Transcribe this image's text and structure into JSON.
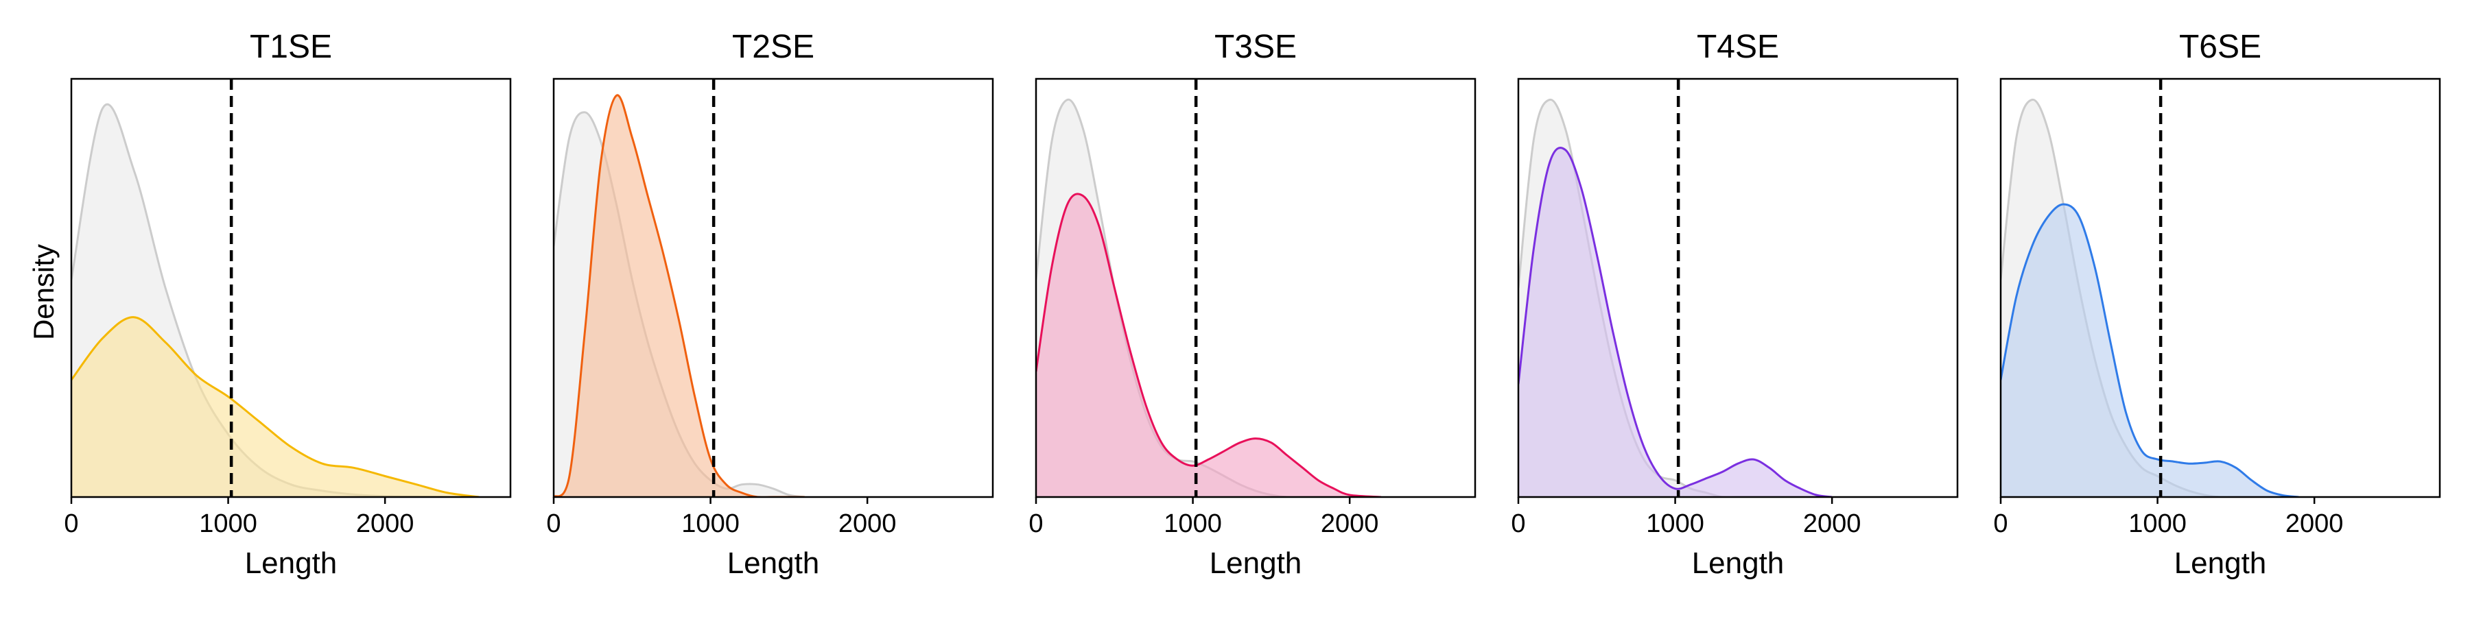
{
  "figure": {
    "ylabel": "Density"
  },
  "chart_data": [
    {
      "type": "area",
      "title": "T1SE",
      "xlabel": "Length",
      "ylabel": "Density",
      "xlim": [
        0,
        2800
      ],
      "ylim": [
        0,
        1.0
      ],
      "xticks": [
        0,
        1000,
        2000
      ],
      "xtick_labels": [
        "0",
        "1000",
        "2000"
      ],
      "threshold": 1020,
      "background_color": "#cccccc",
      "color": "#f5b800",
      "fill_color": "#fbe39a",
      "x": [
        0,
        200,
        400,
        600,
        800,
        1000,
        1200,
        1400,
        1600,
        1800,
        2000,
        2200,
        2400,
        2600
      ],
      "background_density": [
        0.52,
        0.93,
        0.78,
        0.5,
        0.28,
        0.15,
        0.07,
        0.03,
        0.015,
        0.006,
        0.002,
        0.001,
        0.0,
        0.0
      ],
      "density": [
        0.28,
        0.38,
        0.43,
        0.37,
        0.29,
        0.24,
        0.18,
        0.12,
        0.08,
        0.07,
        0.05,
        0.03,
        0.01,
        0.0
      ]
    },
    {
      "type": "area",
      "title": "T2SE",
      "xlabel": "Length",
      "ylabel": "",
      "xlim": [
        0,
        2800
      ],
      "ylim": [
        0,
        1.0
      ],
      "xticks": [
        0,
        1000,
        2000
      ],
      "xtick_labels": [
        "0",
        "1000",
        "2000"
      ],
      "threshold": 1020,
      "background_color": "#cccccc",
      "color": "#f0600f",
      "fill_color": "#f7bc98",
      "x": [
        0,
        100,
        200,
        300,
        400,
        500,
        600,
        700,
        800,
        900,
        1000,
        1100,
        1200,
        1300,
        1400,
        1500,
        1600
      ],
      "background_density": [
        0.6,
        0.86,
        0.92,
        0.85,
        0.7,
        0.52,
        0.37,
        0.25,
        0.15,
        0.08,
        0.04,
        0.02,
        0.03,
        0.03,
        0.02,
        0.005,
        0.0
      ],
      "density": [
        0.0,
        0.05,
        0.4,
        0.8,
        0.96,
        0.86,
        0.72,
        0.58,
        0.42,
        0.24,
        0.09,
        0.03,
        0.01,
        0.0,
        0.0,
        0.0,
        0.0
      ]
    },
    {
      "type": "area",
      "title": "T3SE",
      "xlabel": "Length",
      "ylabel": "",
      "xlim": [
        0,
        2800
      ],
      "ylim": [
        0,
        1.0
      ],
      "xticks": [
        0,
        1000,
        2000
      ],
      "xtick_labels": [
        "0",
        "1000",
        "2000"
      ],
      "threshold": 1020,
      "background_color": "#cccccc",
      "color": "#e8105a",
      "fill_color": "#f4a3c4",
      "x": [
        0,
        100,
        200,
        300,
        400,
        500,
        600,
        700,
        800,
        900,
        1000,
        1100,
        1200,
        1300,
        1400,
        1500,
        1600,
        1700,
        1800,
        1900,
        2000,
        2200
      ],
      "background_density": [
        0.52,
        0.85,
        0.95,
        0.88,
        0.7,
        0.5,
        0.33,
        0.2,
        0.12,
        0.09,
        0.085,
        0.07,
        0.05,
        0.03,
        0.015,
        0.005,
        0.0,
        0.0,
        0.0,
        0.0,
        0.0,
        0.0
      ],
      "density": [
        0.3,
        0.55,
        0.7,
        0.72,
        0.65,
        0.5,
        0.35,
        0.22,
        0.13,
        0.09,
        0.075,
        0.09,
        0.11,
        0.13,
        0.14,
        0.13,
        0.1,
        0.07,
        0.04,
        0.02,
        0.005,
        0.0
      ]
    },
    {
      "type": "area",
      "title": "T4SE",
      "xlabel": "Length",
      "ylabel": "",
      "xlim": [
        0,
        2800
      ],
      "ylim": [
        0,
        1.0
      ],
      "xticks": [
        0,
        1000,
        2000
      ],
      "xtick_labels": [
        "0",
        "1000",
        "2000"
      ],
      "threshold": 1020,
      "background_color": "#cccccc",
      "color": "#7a2fe0",
      "fill_color": "#d4bff0",
      "x": [
        0,
        100,
        200,
        300,
        400,
        500,
        600,
        700,
        800,
        900,
        1000,
        1100,
        1200,
        1300,
        1400,
        1500,
        1600,
        1700,
        1800,
        1900,
        2000
      ],
      "background_density": [
        0.5,
        0.86,
        0.95,
        0.88,
        0.7,
        0.5,
        0.32,
        0.18,
        0.09,
        0.05,
        0.04,
        0.02,
        0.01,
        0.0,
        0.0,
        0.0,
        0.0,
        0.0,
        0.0,
        0.0,
        0.0
      ],
      "density": [
        0.27,
        0.6,
        0.8,
        0.83,
        0.74,
        0.58,
        0.4,
        0.24,
        0.12,
        0.05,
        0.02,
        0.03,
        0.045,
        0.06,
        0.08,
        0.09,
        0.07,
        0.04,
        0.02,
        0.005,
        0.0
      ]
    },
    {
      "type": "area",
      "title": "T6SE",
      "xlabel": "Length",
      "ylabel": "",
      "xlim": [
        0,
        2800
      ],
      "ylim": [
        0,
        1.0
      ],
      "xticks": [
        0,
        1000,
        2000
      ],
      "xtick_labels": [
        "0",
        "1000",
        "2000"
      ],
      "threshold": 1020,
      "background_color": "#cccccc",
      "color": "#2f7be8",
      "fill_color": "#b9cff0",
      "x": [
        0,
        100,
        200,
        300,
        400,
        500,
        600,
        700,
        800,
        900,
        1000,
        1100,
        1200,
        1300,
        1400,
        1500,
        1600,
        1700,
        1800,
        1900
      ],
      "background_density": [
        0.52,
        0.86,
        0.95,
        0.88,
        0.7,
        0.5,
        0.33,
        0.2,
        0.12,
        0.07,
        0.05,
        0.03,
        0.015,
        0.005,
        0.0,
        0.0,
        0.0,
        0.0,
        0.0,
        0.0
      ],
      "density": [
        0.28,
        0.48,
        0.6,
        0.67,
        0.7,
        0.67,
        0.55,
        0.37,
        0.2,
        0.11,
        0.09,
        0.085,
        0.08,
        0.082,
        0.085,
        0.07,
        0.04,
        0.015,
        0.004,
        0.0
      ]
    }
  ]
}
